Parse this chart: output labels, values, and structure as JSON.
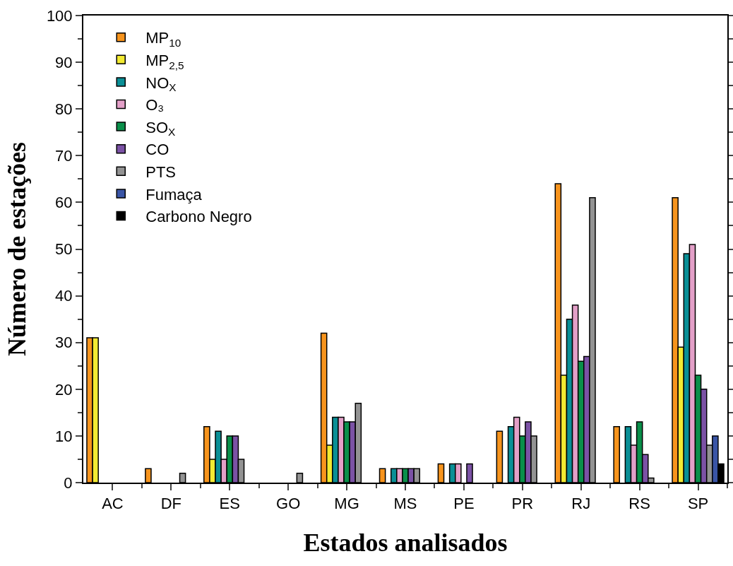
{
  "chart_data": {
    "type": "bar",
    "xlabel": "Estados analisados",
    "ylabel": "Número de estações",
    "categories": [
      "AC",
      "DF",
      "ES",
      "GO",
      "MG",
      "MS",
      "PE",
      "PR",
      "RJ",
      "RS",
      "SP"
    ],
    "series": [
      {
        "name": "MP$_{10}$",
        "color": "#f7941d",
        "values": [
          31,
          3,
          12,
          null,
          32,
          3,
          4,
          11,
          64,
          12,
          61
        ]
      },
      {
        "name": "MP$_{2,5}$",
        "color": "#f2ea32",
        "values": [
          31,
          null,
          5,
          null,
          8,
          null,
          null,
          null,
          23,
          null,
          29
        ]
      },
      {
        "name": "NO$_{X}$",
        "color": "#0a8f96",
        "values": [
          null,
          null,
          11,
          null,
          14,
          3,
          4,
          12,
          35,
          12,
          49
        ]
      },
      {
        "name": "O₃",
        "color": "#e3a0c8",
        "values": [
          null,
          null,
          5,
          null,
          14,
          3,
          4,
          14,
          38,
          8,
          51
        ]
      },
      {
        "name": "SO$_{X}$",
        "color": "#0a8f4a",
        "values": [
          null,
          null,
          10,
          null,
          13,
          3,
          null,
          10,
          26,
          13,
          23
        ]
      },
      {
        "name": "CO",
        "color": "#7b52a5",
        "values": [
          null,
          null,
          10,
          null,
          13,
          3,
          4,
          13,
          27,
          6,
          20
        ]
      },
      {
        "name": "PTS",
        "color": "#939393",
        "values": [
          null,
          2,
          5,
          2,
          17,
          3,
          null,
          10,
          61,
          1,
          8
        ]
      },
      {
        "name": "Fumaça",
        "color": "#3a55a6",
        "values": [
          null,
          null,
          null,
          null,
          null,
          null,
          null,
          null,
          null,
          null,
          10
        ]
      },
      {
        "name": "Carbono Negro",
        "color": "#000000",
        "values": [
          null,
          null,
          null,
          null,
          null,
          null,
          null,
          null,
          null,
          null,
          4
        ]
      }
    ],
    "ylim": [
      0,
      100
    ],
    "yticks": [
      0,
      10,
      20,
      30,
      40,
      50,
      60,
      70,
      80,
      90,
      100
    ],
    "grid": false,
    "legend": "top left"
  }
}
